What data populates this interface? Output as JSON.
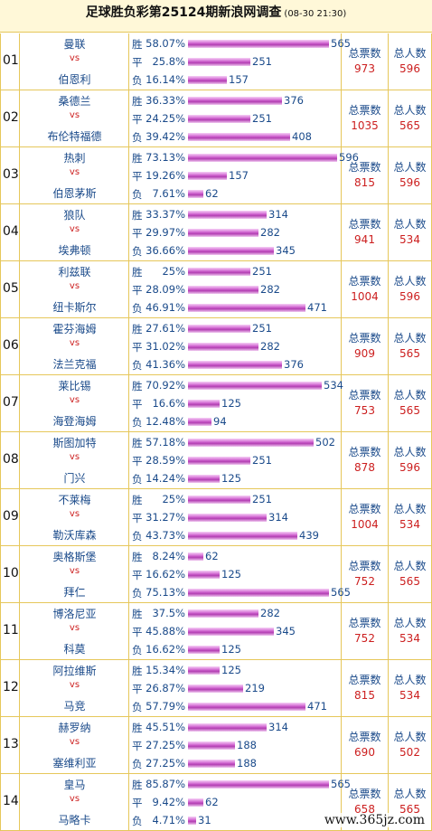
{
  "header": {
    "title": "足球胜负彩第25124期新浪网调查",
    "date": "(08-30 21:30)"
  },
  "labels": {
    "win": "胜",
    "draw": "平",
    "lose": "负",
    "vs": "vs",
    "total_votes": "总票数",
    "total_people": "总人数"
  },
  "matches": [
    {
      "no": "01",
      "home": "曼联",
      "away": "伯恩利",
      "win": {
        "pct": "58.07%",
        "count": "565"
      },
      "draw": {
        "pct": "25.8%",
        "count": "251"
      },
      "lose": {
        "pct": "16.14%",
        "count": "157"
      },
      "votes": "973",
      "people": "596"
    },
    {
      "no": "02",
      "home": "桑德兰",
      "away": "布伦特福德",
      "win": {
        "pct": "36.33%",
        "count": "376"
      },
      "draw": {
        "pct": "24.25%",
        "count": "251"
      },
      "lose": {
        "pct": "39.42%",
        "count": "408"
      },
      "votes": "1035",
      "people": "565"
    },
    {
      "no": "03",
      "home": "热刺",
      "away": "伯恩茅斯",
      "win": {
        "pct": "73.13%",
        "count": "596"
      },
      "draw": {
        "pct": "19.26%",
        "count": "157"
      },
      "lose": {
        "pct": "7.61%",
        "count": "62"
      },
      "votes": "815",
      "people": "596"
    },
    {
      "no": "04",
      "home": "狼队",
      "away": "埃弗顿",
      "win": {
        "pct": "33.37%",
        "count": "314"
      },
      "draw": {
        "pct": "29.97%",
        "count": "282"
      },
      "lose": {
        "pct": "36.66%",
        "count": "345"
      },
      "votes": "941",
      "people": "534"
    },
    {
      "no": "05",
      "home": "利兹联",
      "away": "纽卡斯尔",
      "win": {
        "pct": "25%",
        "count": "251"
      },
      "draw": {
        "pct": "28.09%",
        "count": "282"
      },
      "lose": {
        "pct": "46.91%",
        "count": "471"
      },
      "votes": "1004",
      "people": "596"
    },
    {
      "no": "06",
      "home": "霍芬海姆",
      "away": "法兰克福",
      "win": {
        "pct": "27.61%",
        "count": "251"
      },
      "draw": {
        "pct": "31.02%",
        "count": "282"
      },
      "lose": {
        "pct": "41.36%",
        "count": "376"
      },
      "votes": "909",
      "people": "565"
    },
    {
      "no": "07",
      "home": "莱比锡",
      "away": "海登海姆",
      "win": {
        "pct": "70.92%",
        "count": "534"
      },
      "draw": {
        "pct": "16.6%",
        "count": "125"
      },
      "lose": {
        "pct": "12.48%",
        "count": "94"
      },
      "votes": "753",
      "people": "565"
    },
    {
      "no": "08",
      "home": "斯图加特",
      "away": "门兴",
      "win": {
        "pct": "57.18%",
        "count": "502"
      },
      "draw": {
        "pct": "28.59%",
        "count": "251"
      },
      "lose": {
        "pct": "14.24%",
        "count": "125"
      },
      "votes": "878",
      "people": "596"
    },
    {
      "no": "09",
      "home": "不莱梅",
      "away": "勒沃库森",
      "win": {
        "pct": "25%",
        "count": "251"
      },
      "draw": {
        "pct": "31.27%",
        "count": "314"
      },
      "lose": {
        "pct": "43.73%",
        "count": "439"
      },
      "votes": "1004",
      "people": "534"
    },
    {
      "no": "10",
      "home": "奥格斯堡",
      "away": "拜仁",
      "win": {
        "pct": "8.24%",
        "count": "62"
      },
      "draw": {
        "pct": "16.62%",
        "count": "125"
      },
      "lose": {
        "pct": "75.13%",
        "count": "565"
      },
      "votes": "752",
      "people": "565"
    },
    {
      "no": "11",
      "home": "博洛尼亚",
      "away": "科莫",
      "win": {
        "pct": "37.5%",
        "count": "282"
      },
      "draw": {
        "pct": "45.88%",
        "count": "345"
      },
      "lose": {
        "pct": "16.62%",
        "count": "125"
      },
      "votes": "752",
      "people": "534"
    },
    {
      "no": "12",
      "home": "阿拉维斯",
      "away": "马竞",
      "win": {
        "pct": "15.34%",
        "count": "125"
      },
      "draw": {
        "pct": "26.87%",
        "count": "219"
      },
      "lose": {
        "pct": "57.79%",
        "count": "471"
      },
      "votes": "815",
      "people": "534"
    },
    {
      "no": "13",
      "home": "赫罗纳",
      "away": "塞维利亚",
      "win": {
        "pct": "45.51%",
        "count": "314"
      },
      "draw": {
        "pct": "27.25%",
        "count": "188"
      },
      "lose": {
        "pct": "27.25%",
        "count": "188"
      },
      "votes": "690",
      "people": "502"
    },
    {
      "no": "14",
      "home": "皇马",
      "away": "马略卡",
      "win": {
        "pct": "85.87%",
        "count": "565"
      },
      "draw": {
        "pct": "9.42%",
        "count": "62"
      },
      "lose": {
        "pct": "4.71%",
        "count": "31"
      },
      "votes": "658",
      "people": "565"
    }
  ],
  "watermark": "www.365jz.com",
  "colors": {
    "team": "#1a4a8a",
    "accent_red": "#cc1f1f",
    "grid": "#e6c75a",
    "bar": "#d36bd3",
    "header_bg": "#fff8d8"
  }
}
